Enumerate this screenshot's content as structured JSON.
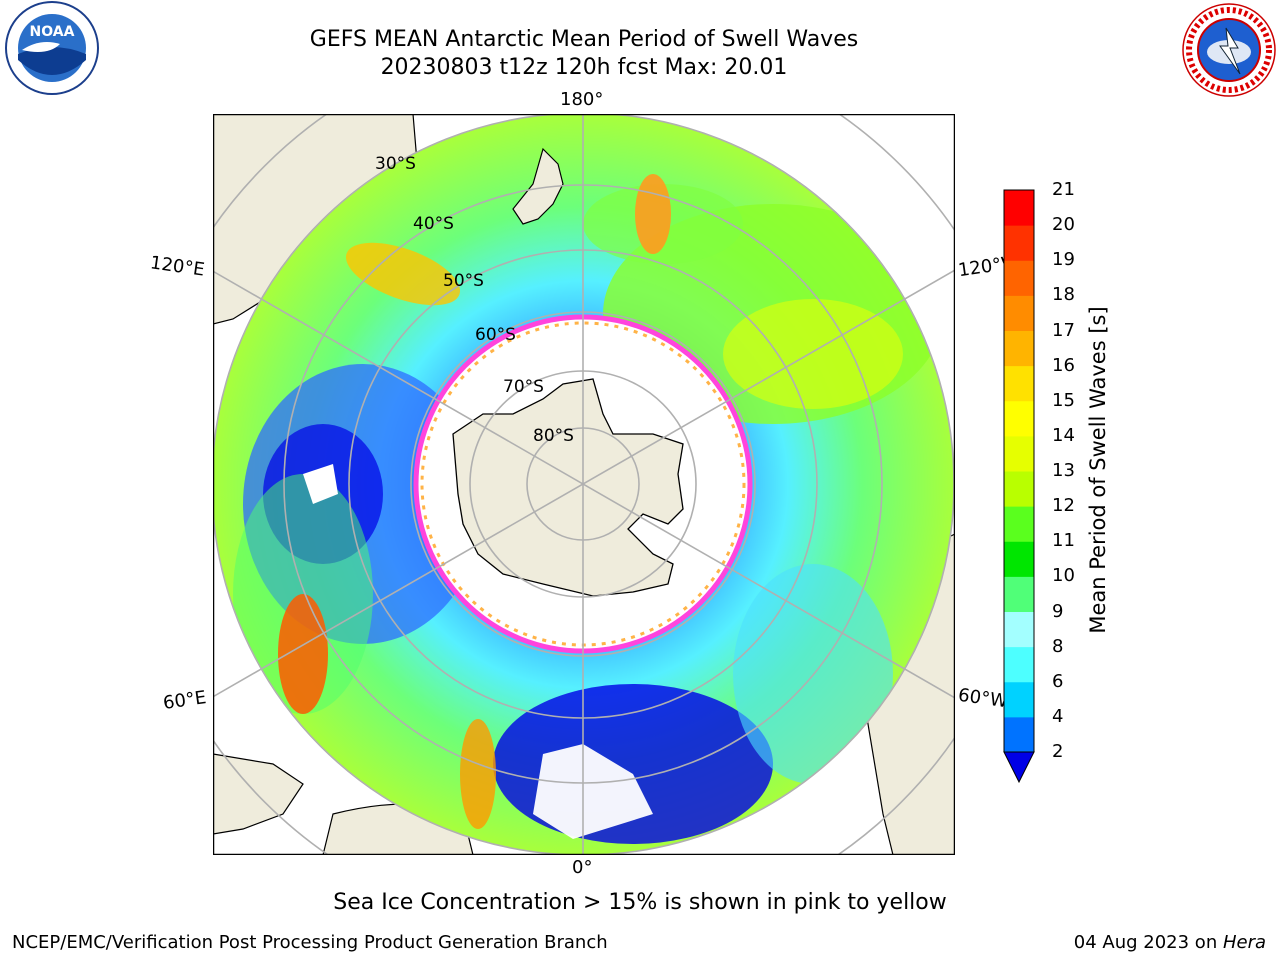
{
  "header": {
    "title_line1": "GEFS MEAN Antarctic Mean Period of Swell Waves",
    "title_line2": "20230803 t12z 120h fcst   Max: 20.01"
  },
  "logos": {
    "noaa": {
      "text": "NOAA",
      "icon": "noaa-logo"
    },
    "nws": {
      "text": "NATIONAL WEATHER SERVICE",
      "icon": "nws-logo"
    }
  },
  "map": {
    "projection": "south-polar-stereographic",
    "longitude_labels": {
      "top": "180°",
      "bottom": "0°",
      "left_upper": "120°E",
      "left_lower": "60°E",
      "right_upper": "120°W",
      "right_lower": "60°W"
    },
    "latitude_labels": [
      "30°S",
      "40°S",
      "50°S",
      "60°S",
      "70°S",
      "80°S"
    ],
    "colors": {
      "land": "#efecdc",
      "grid": "#b0b0b0",
      "ice_edge": "#ff44dd",
      "ice_inner": "#ffb347"
    }
  },
  "colorbar": {
    "label": "Mean Period of Swell Waves [s]",
    "ticks": [
      "21",
      "20",
      "19",
      "18",
      "17",
      "16",
      "15",
      "14",
      "13",
      "12",
      "11",
      "10",
      "9",
      "8",
      "6",
      "4",
      "2"
    ],
    "colors": [
      "#0000e6",
      "#0073ff",
      "#00d2ff",
      "#4dffff",
      "#a3ffff",
      "#50ff78",
      "#00e600",
      "#5aff1e",
      "#b9ff00",
      "#e6ff00",
      "#ffff00",
      "#ffe100",
      "#ffb400",
      "#ff8c00",
      "#ff6400",
      "#ff3200",
      "#ff0000"
    ]
  },
  "notes": {
    "ice": "Sea Ice Concentration > 15% is shown in pink to yellow"
  },
  "footer": {
    "left": "NCEP/EMC/Verification Post Processing Product Generation Branch",
    "date": "04 Aug 2023 on ",
    "machine": "Hera"
  }
}
